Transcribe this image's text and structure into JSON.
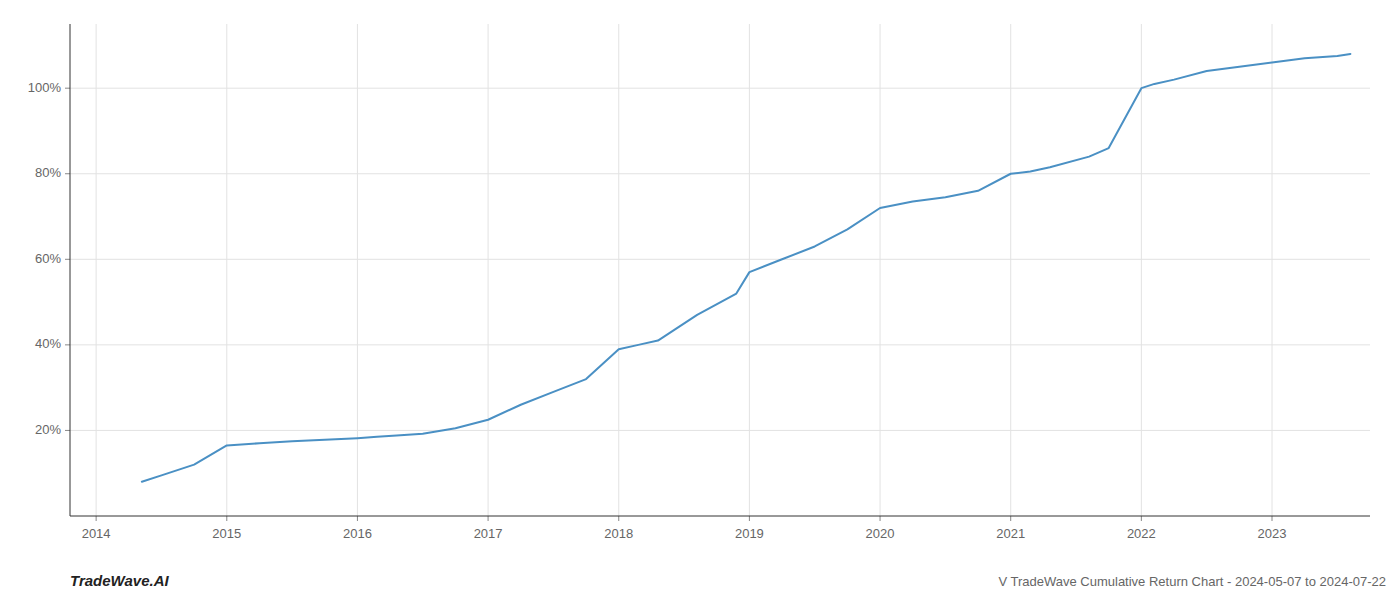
{
  "chart_data": {
    "type": "line",
    "subtitle": "V TradeWave Cumulative Return Chart - 2024-05-07 to 2024-07-22",
    "annotations": [
      "TradeWave.AI"
    ],
    "color": "#4a90c4",
    "grid": true,
    "x": [
      2014.35,
      2014.5,
      2014.75,
      2015.0,
      2015.25,
      2015.5,
      2015.75,
      2016.0,
      2016.15,
      2016.3,
      2016.5,
      2016.75,
      2017.0,
      2017.25,
      2017.5,
      2017.75,
      2018.0,
      2018.15,
      2018.3,
      2018.6,
      2018.9,
      2019.0,
      2019.25,
      2019.5,
      2019.75,
      2020.0,
      2020.25,
      2020.5,
      2020.75,
      2021.0,
      2021.15,
      2021.3,
      2021.6,
      2021.75,
      2022.0,
      2022.1,
      2022.25,
      2022.5,
      2022.75,
      2023.0,
      2023.25,
      2023.5,
      2023.6
    ],
    "values": [
      8,
      9.5,
      12,
      16.5,
      17.0,
      17.5,
      17.8,
      18.2,
      18.5,
      18.8,
      19.2,
      20.5,
      22.5,
      26,
      29,
      32,
      39,
      40,
      41,
      47,
      52,
      57,
      60,
      63,
      67,
      72,
      73.5,
      74.5,
      76,
      80,
      80.5,
      81.5,
      84,
      86,
      100,
      101,
      102,
      104,
      105,
      106,
      107,
      107.5,
      108
    ],
    "xlim": [
      2013.8,
      2023.75
    ],
    "xticks": [
      2014,
      2015,
      2016,
      2017,
      2018,
      2019,
      2020,
      2021,
      2022,
      2023
    ],
    "ylim": [
      0,
      115
    ],
    "yticks": [
      {
        "value": 20,
        "label": "20%"
      },
      {
        "value": 40,
        "label": "40%"
      },
      {
        "value": 60,
        "label": "60%"
      },
      {
        "value": 80,
        "label": "80%"
      },
      {
        "value": 100,
        "label": "100%"
      }
    ]
  }
}
